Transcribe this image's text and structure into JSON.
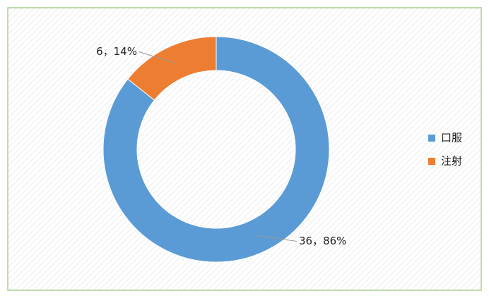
{
  "chart_data": {
    "type": "donut",
    "categories": [
      "口服",
      "注射"
    ],
    "values": [
      36,
      6
    ],
    "value_labels": [
      "36，86%",
      "6，14%"
    ],
    "colors": [
      "#5b9bd5",
      "#ed7d31"
    ],
    "legend": "right"
  }
}
